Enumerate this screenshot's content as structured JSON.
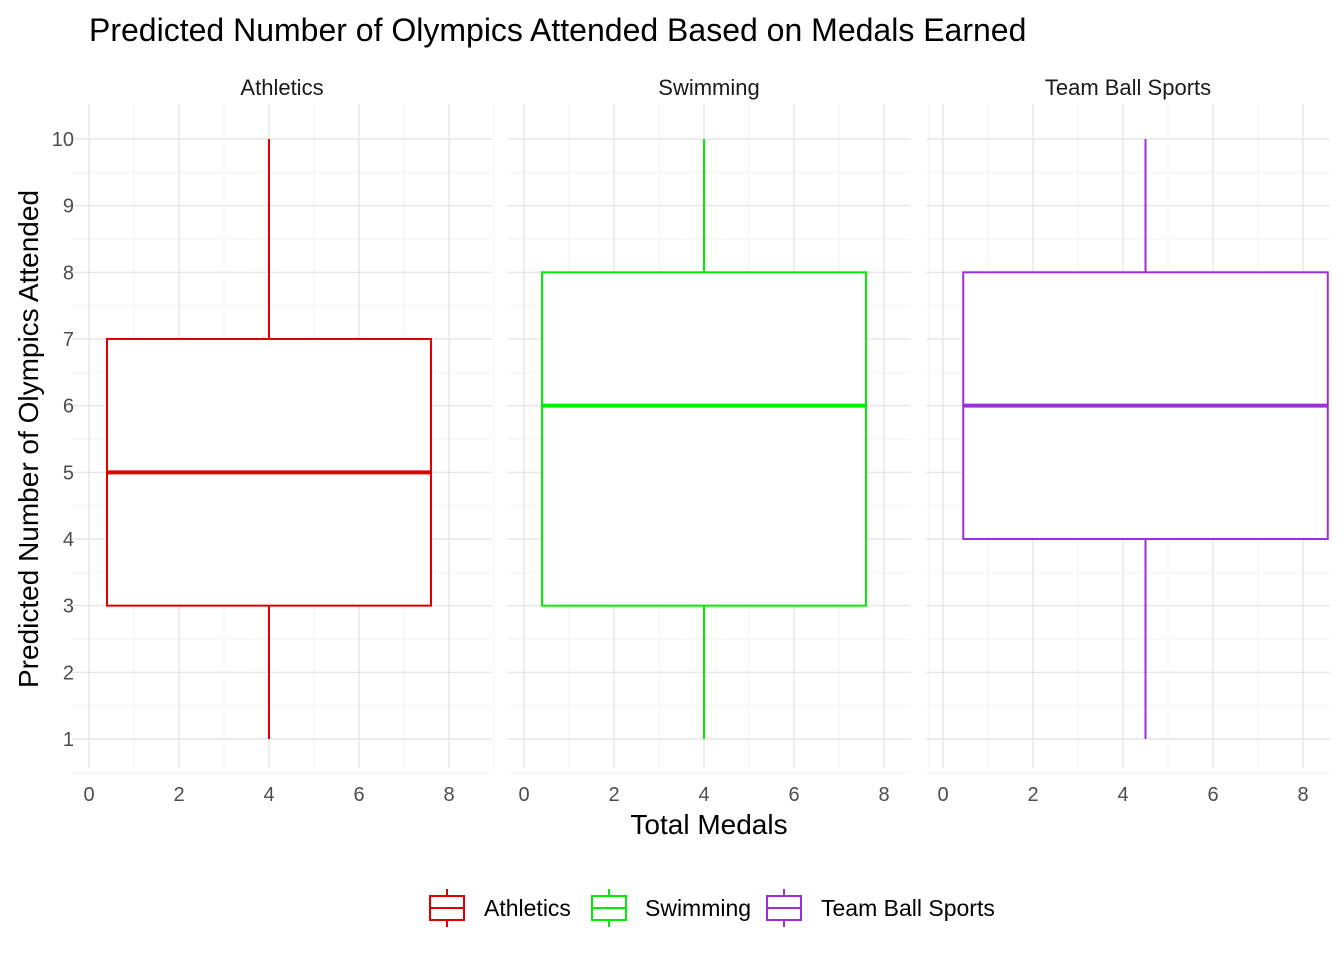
{
  "chart_data": {
    "type": "boxplot",
    "title": "Predicted Number of Olympics Attended Based on Medals Earned",
    "xlabel": "Total Medals",
    "ylabel": "Predicted Number of Olympics Attended",
    "xlim": [
      0,
      9
    ],
    "ylim": [
      1,
      10
    ],
    "x_ticks": [
      0,
      2,
      4,
      6,
      8
    ],
    "y_ticks": [
      1,
      2,
      3,
      4,
      5,
      6,
      7,
      8,
      9,
      10
    ],
    "grid": true,
    "legend_position": "bottom",
    "facets": [
      {
        "name": "Athletics",
        "color": "#E00000",
        "x_center": 4,
        "x_range": [
          0.4,
          7.6
        ],
        "min": 1,
        "q1": 3,
        "median": 5,
        "q3": 7,
        "max": 10
      },
      {
        "name": "Swimming",
        "color": "#00EE00",
        "x_center": 4,
        "x_range": [
          0.4,
          7.6
        ],
        "min": 1,
        "q1": 3,
        "median": 6,
        "q3": 8,
        "max": 10
      },
      {
        "name": "Team Ball Sports",
        "color": "#9B30D9",
        "x_center": 4.5,
        "x_range": [
          0.45,
          8.55
        ],
        "min": 1,
        "q1": 4,
        "median": 6,
        "q3": 8,
        "max": 10
      }
    ]
  }
}
